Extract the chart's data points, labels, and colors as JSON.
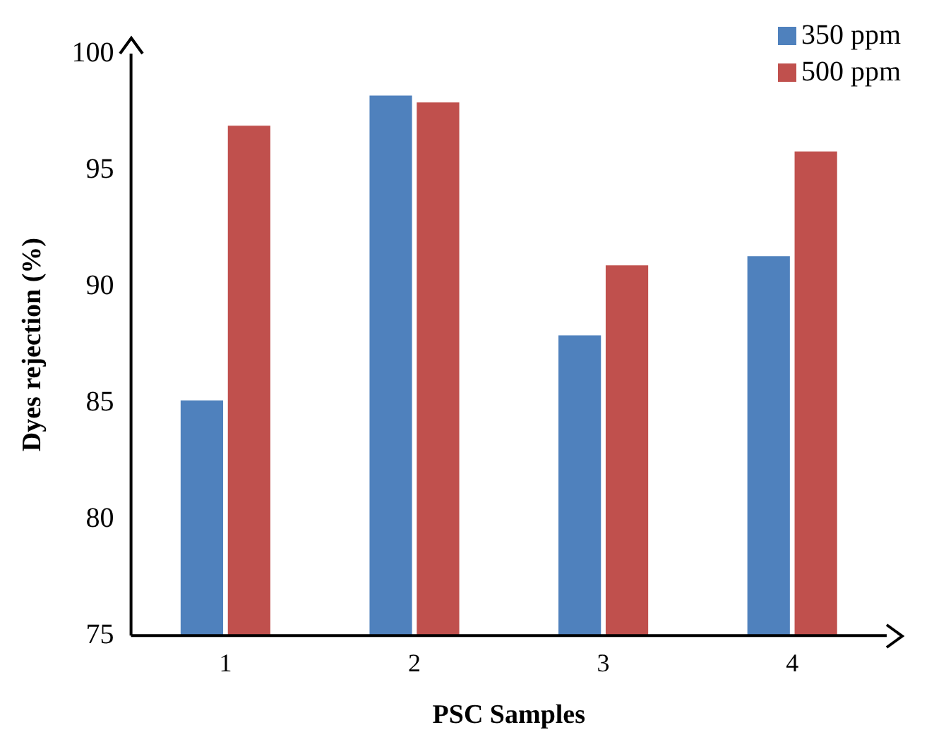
{
  "chart_data": {
    "type": "bar",
    "xlabel": "PSC Samples",
    "ylabel": "Dyes rejection (%)",
    "categories": [
      "1",
      "2",
      "3",
      "4"
    ],
    "series": [
      {
        "name": "350 ppm",
        "color": "#4f81bd",
        "values": [
          85.1,
          98.2,
          87.9,
          91.3
        ]
      },
      {
        "name": "500 ppm",
        "color": "#c0504d",
        "values": [
          96.9,
          97.9,
          90.9,
          95.8
        ]
      }
    ],
    "ylim": [
      75,
      100
    ],
    "yticks": [
      75,
      80,
      85,
      90,
      95,
      100
    ],
    "grid": false,
    "legend": "top right"
  }
}
